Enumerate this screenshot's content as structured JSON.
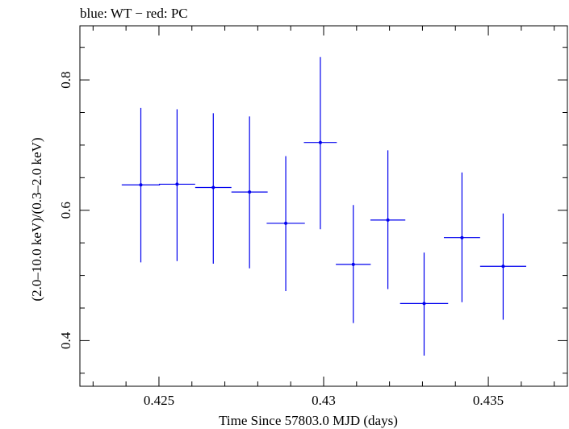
{
  "chart_data": {
    "type": "scatter",
    "title": "blue: WT − red: PC",
    "xlabel": "Time Since 57803.0 MJD (days)",
    "ylabel": "(2.0–10.0 keV)/(0.3–2.0 keV)",
    "xlim": [
      0.4226,
      0.4374
    ],
    "ylim": [
      0.33,
      0.883
    ],
    "x_major_ticks": [
      0.425,
      0.43,
      0.435
    ],
    "x_tick_labels": [
      "0.425",
      "0.43",
      "0.435"
    ],
    "x_minor_ticks": [
      0.423,
      0.424,
      0.426,
      0.427,
      0.428,
      0.429,
      0.431,
      0.432,
      0.433,
      0.434,
      0.436,
      0.437
    ],
    "y_major_ticks": [
      0.4,
      0.6,
      0.8
    ],
    "y_tick_labels": [
      "0.4",
      "0.6",
      "0.8"
    ],
    "y_minor_ticks": [
      0.35,
      0.45,
      0.5,
      0.55,
      0.65,
      0.7,
      0.75,
      0.85
    ],
    "series": [
      {
        "name": "WT",
        "color": "#0000ee",
        "points": [
          {
            "x": 0.42445,
            "xerr": 0.00058,
            "y": 0.639,
            "ylo": 0.52,
            "yhi": 0.757
          },
          {
            "x": 0.42555,
            "xerr": 0.00055,
            "y": 0.64,
            "ylo": 0.522,
            "yhi": 0.755
          },
          {
            "x": 0.42665,
            "xerr": 0.00055,
            "y": 0.635,
            "ylo": 0.518,
            "yhi": 0.749
          },
          {
            "x": 0.42775,
            "xerr": 0.00055,
            "y": 0.628,
            "ylo": 0.511,
            "yhi": 0.744
          },
          {
            "x": 0.42885,
            "xerr": 0.00058,
            "y": 0.58,
            "ylo": 0.476,
            "yhi": 0.683
          },
          {
            "x": 0.4299,
            "xerr": 0.0005,
            "y": 0.704,
            "ylo": 0.571,
            "yhi": 0.835
          },
          {
            "x": 0.4309,
            "xerr": 0.00053,
            "y": 0.517,
            "ylo": 0.427,
            "yhi": 0.608
          },
          {
            "x": 0.43195,
            "xerr": 0.00053,
            "y": 0.585,
            "ylo": 0.479,
            "yhi": 0.692
          },
          {
            "x": 0.43305,
            "xerr": 0.00073,
            "y": 0.457,
            "ylo": 0.377,
            "yhi": 0.535
          },
          {
            "x": 0.4342,
            "xerr": 0.00055,
            "y": 0.558,
            "ylo": 0.459,
            "yhi": 0.658
          },
          {
            "x": 0.43545,
            "xerr": 0.0007,
            "y": 0.514,
            "ylo": 0.432,
            "yhi": 0.595
          }
        ]
      }
    ]
  }
}
